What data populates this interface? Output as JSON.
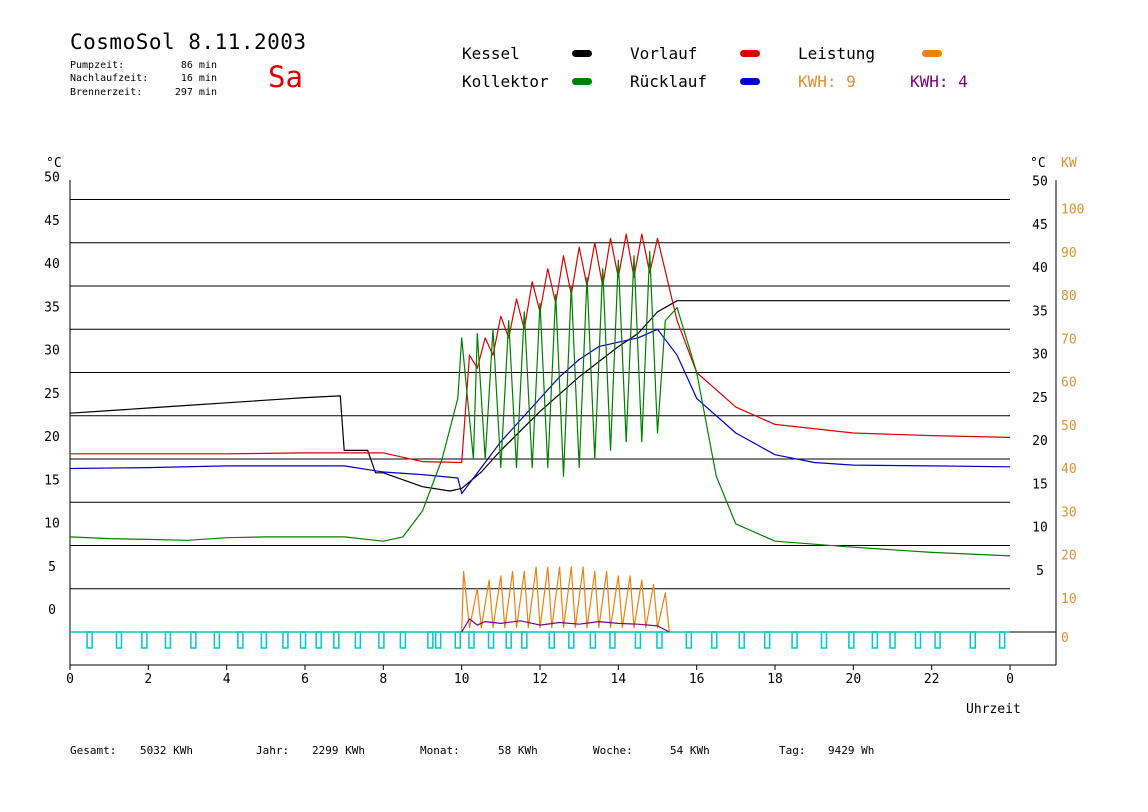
{
  "header": {
    "title": "CosmoSol 8.11.2003",
    "day": "Sa",
    "stats": [
      {
        "label": "Pumpzeit:",
        "value": "86 min"
      },
      {
        "label": "Nachlaufzeit:",
        "value": "16 min"
      },
      {
        "label": "Brennerzeit:",
        "value": "297 min"
      }
    ]
  },
  "legend": {
    "kessel": {
      "label": "Kessel",
      "color": "#000000"
    },
    "kollektor": {
      "label": "Kollektor",
      "color": "#008000"
    },
    "vorlauf": {
      "label": "Vorlauf",
      "color": "#dd0000"
    },
    "ruecklauf": {
      "label": "Rücklauf",
      "color": "#0000cc"
    },
    "leistung": {
      "label": "Leistung",
      "color": "#f08010"
    },
    "kwh1": {
      "text": "KWH: 9",
      "color": "#e09030"
    },
    "kwh2": {
      "text": "KWH: 4",
      "color": "#800080"
    }
  },
  "footer": [
    {
      "label": "Gesamt:",
      "value": "5032 KWh"
    },
    {
      "label": "Jahr:",
      "value": "2299 KWh"
    },
    {
      "label": "Monat:",
      "value": "58 KWh"
    },
    {
      "label": "Woche:",
      "value": "54 KWh"
    },
    {
      "label": "Tag:",
      "value": "9429 Wh"
    }
  ],
  "chart_data": {
    "type": "line",
    "xlabel": "Uhrzeit",
    "ylabel_left": "°C",
    "ylabel_right_temp": "°C",
    "ylabel_right_power": "KW",
    "xlim": [
      0,
      24
    ],
    "ylim": [
      0,
      55
    ],
    "x_ticks": [
      "0",
      "2",
      "4",
      "6",
      "8",
      "10",
      "12",
      "14",
      "16",
      "18",
      "20",
      "22",
      "0"
    ],
    "y_ticks": [
      0,
      5,
      10,
      15,
      20,
      25,
      30,
      35,
      40,
      45,
      50
    ],
    "power_ticks": [
      0,
      10,
      20,
      30,
      40,
      50,
      60,
      70,
      80,
      90,
      100
    ],
    "grid": true,
    "series": [
      {
        "name": "Kessel",
        "color": "#000000",
        "points": [
          [
            0,
            25.3
          ],
          [
            1,
            25.6
          ],
          [
            2,
            25.9
          ],
          [
            3,
            26.2
          ],
          [
            4,
            26.5
          ],
          [
            5,
            26.8
          ],
          [
            6,
            27.1
          ],
          [
            6.9,
            27.3
          ],
          [
            7.0,
            21.0
          ],
          [
            7.6,
            21.0
          ],
          [
            7.8,
            18.4
          ],
          [
            8,
            18.4
          ],
          [
            9,
            16.8
          ],
          [
            9.7,
            16.3
          ],
          [
            10,
            16.6
          ],
          [
            10.5,
            18.5
          ],
          [
            11,
            21.0
          ],
          [
            12,
            25.5
          ],
          [
            13,
            29.5
          ],
          [
            14,
            33.0
          ],
          [
            14.5,
            34.5
          ],
          [
            15,
            37.0
          ],
          [
            15.5,
            38.3
          ],
          [
            16,
            38.3
          ],
          [
            20,
            38.3
          ],
          [
            24,
            38.3
          ]
        ]
      },
      {
        "name": "Vorlauf",
        "color": "#dd0000",
        "points": [
          [
            0,
            20.6
          ],
          [
            2,
            20.6
          ],
          [
            4,
            20.6
          ],
          [
            6,
            20.7
          ],
          [
            7,
            20.7
          ],
          [
            8,
            20.7
          ],
          [
            9,
            19.7
          ],
          [
            10,
            19.6
          ],
          [
            10.2,
            32.0
          ],
          [
            10.4,
            30.5
          ],
          [
            10.6,
            34.0
          ],
          [
            10.8,
            32.0
          ],
          [
            11,
            36.5
          ],
          [
            11.2,
            34.0
          ],
          [
            11.4,
            38.5
          ],
          [
            11.6,
            35.0
          ],
          [
            11.8,
            40.5
          ],
          [
            12,
            37.0
          ],
          [
            12.2,
            42.0
          ],
          [
            12.4,
            38.0
          ],
          [
            12.6,
            43.5
          ],
          [
            12.8,
            39.0
          ],
          [
            13,
            44.5
          ],
          [
            13.2,
            40.0
          ],
          [
            13.4,
            45.0
          ],
          [
            13.6,
            40.0
          ],
          [
            13.8,
            45.5
          ],
          [
            14,
            41.0
          ],
          [
            14.2,
            46.0
          ],
          [
            14.4,
            41.0
          ],
          [
            14.6,
            46.0
          ],
          [
            14.8,
            41.5
          ],
          [
            15,
            45.5
          ],
          [
            15.5,
            36.0
          ],
          [
            16,
            30.0
          ],
          [
            17,
            26.0
          ],
          [
            18,
            24.0
          ],
          [
            20,
            23.0
          ],
          [
            22,
            22.7
          ],
          [
            24,
            22.5
          ]
        ]
      },
      {
        "name": "Rücklauf",
        "color": "#0000cc",
        "points": [
          [
            0,
            18.9
          ],
          [
            2,
            19.0
          ],
          [
            4,
            19.2
          ],
          [
            6,
            19.2
          ],
          [
            7,
            19.2
          ],
          [
            8,
            18.5
          ],
          [
            9,
            18.2
          ],
          [
            9.9,
            17.8
          ],
          [
            10,
            16.0
          ],
          [
            10.5,
            19.0
          ],
          [
            11,
            22.0
          ],
          [
            11.5,
            24.5
          ],
          [
            12,
            27.0
          ],
          [
            12.5,
            29.5
          ],
          [
            13,
            31.5
          ],
          [
            13.5,
            33.0
          ],
          [
            14,
            33.5
          ],
          [
            14.5,
            34.0
          ],
          [
            15,
            35.0
          ],
          [
            15.5,
            32.0
          ],
          [
            16,
            27.0
          ],
          [
            17,
            23.0
          ],
          [
            18,
            20.5
          ],
          [
            19,
            19.6
          ],
          [
            20,
            19.3
          ],
          [
            22,
            19.2
          ],
          [
            24,
            19.1
          ]
        ]
      },
      {
        "name": "Kollektor",
        "color": "#008000",
        "points": [
          [
            0,
            11.0
          ],
          [
            1,
            10.8
          ],
          [
            2,
            10.7
          ],
          [
            3,
            10.6
          ],
          [
            4,
            10.9
          ],
          [
            5,
            11.0
          ],
          [
            6,
            11.0
          ],
          [
            7,
            11.0
          ],
          [
            8,
            10.5
          ],
          [
            8.5,
            11.0
          ],
          [
            9,
            14.0
          ],
          [
            9.5,
            20.0
          ],
          [
            9.9,
            27.0
          ],
          [
            10,
            34.0
          ],
          [
            10.3,
            20.0
          ],
          [
            10.4,
            34.5
          ],
          [
            10.6,
            20.0
          ],
          [
            10.8,
            35.0
          ],
          [
            11,
            19.0
          ],
          [
            11.2,
            36.0
          ],
          [
            11.4,
            19.0
          ],
          [
            11.6,
            37.0
          ],
          [
            11.8,
            19.0
          ],
          [
            12,
            38.0
          ],
          [
            12.2,
            19.0
          ],
          [
            12.4,
            39.0
          ],
          [
            12.6,
            18.0
          ],
          [
            12.8,
            40.0
          ],
          [
            13,
            19.0
          ],
          [
            13.2,
            41.0
          ],
          [
            13.4,
            20.0
          ],
          [
            13.6,
            42.0
          ],
          [
            13.8,
            21.0
          ],
          [
            14,
            43.0
          ],
          [
            14.2,
            22.0
          ],
          [
            14.4,
            43.5
          ],
          [
            14.6,
            22.0
          ],
          [
            14.8,
            44.0
          ],
          [
            15,
            23.0
          ],
          [
            15.2,
            36.0
          ],
          [
            15.5,
            37.5
          ],
          [
            16,
            30.0
          ],
          [
            16.5,
            18.0
          ],
          [
            17,
            12.5
          ],
          [
            18,
            10.5
          ],
          [
            20,
            9.8
          ],
          [
            22,
            9.2
          ],
          [
            24,
            8.8
          ]
        ]
      },
      {
        "name": "Leistung",
        "color": "#f08010",
        "axis": "power",
        "points": [
          [
            10,
            0
          ],
          [
            10.05,
            7.0
          ],
          [
            10.2,
            0.5
          ],
          [
            10.4,
            5.0
          ],
          [
            10.5,
            0.5
          ],
          [
            10.7,
            6.0
          ],
          [
            10.8,
            0.5
          ],
          [
            11,
            6.5
          ],
          [
            11.1,
            0.5
          ],
          [
            11.3,
            7.0
          ],
          [
            11.4,
            0.5
          ],
          [
            11.6,
            7.0
          ],
          [
            11.7,
            0.5
          ],
          [
            11.9,
            7.5
          ],
          [
            12,
            0.5
          ],
          [
            12.2,
            7.5
          ],
          [
            12.3,
            0.5
          ],
          [
            12.5,
            7.5
          ],
          [
            12.6,
            0.5
          ],
          [
            12.8,
            7.5
          ],
          [
            12.9,
            0.5
          ],
          [
            13.1,
            7.5
          ],
          [
            13.2,
            0.5
          ],
          [
            13.4,
            7.0
          ],
          [
            13.5,
            0.5
          ],
          [
            13.7,
            7.0
          ],
          [
            13.8,
            0.5
          ],
          [
            14,
            6.5
          ],
          [
            14.1,
            0.5
          ],
          [
            14.3,
            6.5
          ],
          [
            14.4,
            0.5
          ],
          [
            14.6,
            6.0
          ],
          [
            14.7,
            0.5
          ],
          [
            14.9,
            5.5
          ],
          [
            15,
            0.5
          ],
          [
            15.2,
            4.5
          ],
          [
            15.3,
            0
          ]
        ]
      },
      {
        "name": "Power2",
        "color": "#800080",
        "axis": "power",
        "points": [
          [
            10,
            0
          ],
          [
            10.2,
            1.5
          ],
          [
            10.4,
            0.8
          ],
          [
            10.6,
            1.2
          ],
          [
            11,
            1.0
          ],
          [
            11.5,
            1.3
          ],
          [
            12,
            0.8
          ],
          [
            12.5,
            1.1
          ],
          [
            13,
            0.9
          ],
          [
            13.5,
            1.2
          ],
          [
            14,
            1.0
          ],
          [
            14.5,
            0.9
          ],
          [
            15,
            0.7
          ],
          [
            15.3,
            0
          ]
        ]
      }
    ],
    "pump_pulses": [
      0.5,
      1.25,
      1.9,
      2.5,
      3.15,
      3.75,
      4.35,
      4.95,
      5.5,
      5.95,
      6.35,
      6.8,
      7.35,
      7.95,
      8.5,
      9.2,
      9.4,
      9.9,
      10.25,
      10.75,
      11.2,
      11.6,
      12.3,
      12.8,
      13.35,
      13.85,
      14.5,
      15.05,
      15.8,
      16.45,
      17.15,
      17.8,
      18.5,
      19.25,
      19.95,
      20.55,
      21,
      21.65,
      22.15,
      23.05,
      23.8
    ],
    "pump_color": "#00c8c8"
  }
}
